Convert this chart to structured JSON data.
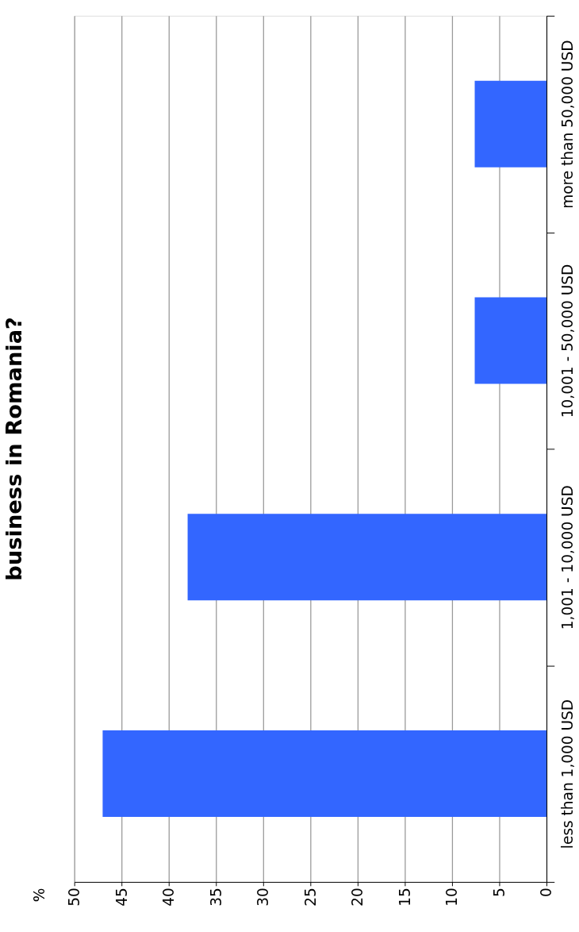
{
  "chart_data": {
    "type": "bar",
    "orientation": "horizontal",
    "title": "business in Romania?",
    "annotations": [
      "%"
    ],
    "categories": [
      "more than 50,000 USD",
      "10,001 - 50,000 USD",
      "1,001 - 10,000 USD",
      "less than 1,000 USD"
    ],
    "values": [
      7.6,
      7.6,
      38.0,
      47.0
    ],
    "color": "#3366ff",
    "xlim": [
      50,
      0
    ],
    "xticks": [
      50,
      45,
      40,
      35,
      30,
      25,
      20,
      15,
      10,
      5,
      0
    ],
    "grid": "x"
  }
}
